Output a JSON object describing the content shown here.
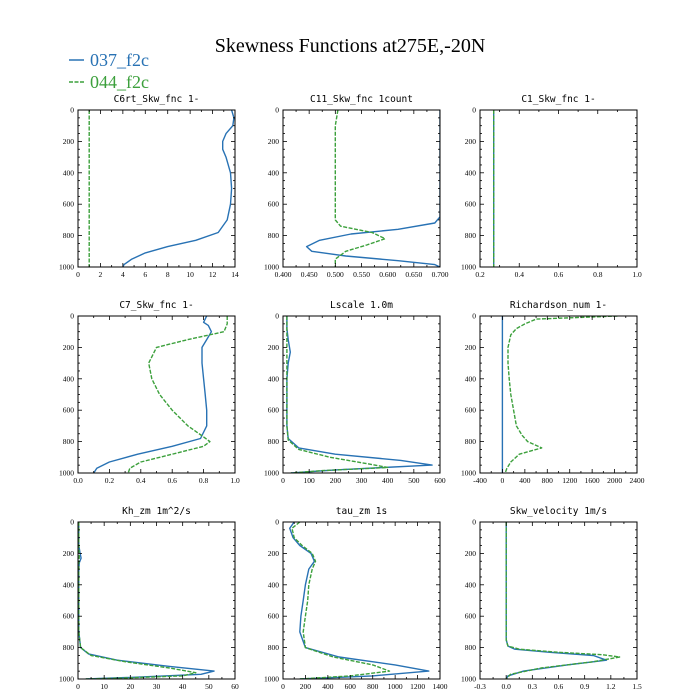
{
  "title": "Skewness Functions at275E,-20N",
  "legend": [
    {
      "name": "037_f2c",
      "color": "#2872b4"
    },
    {
      "name": "044_f2c",
      "color": "#3ca03c"
    }
  ],
  "chart_data": [
    {
      "type": "line",
      "title": "C6rt_Skw_fnc  1-",
      "xlim": [
        0,
        14
      ],
      "ylim": [
        1000,
        0
      ],
      "xticks": [
        "0",
        "2",
        "4",
        "6",
        "8",
        "10",
        "12",
        "14"
      ],
      "yticks": [
        "0",
        "200",
        "400",
        "600",
        "800",
        "1000"
      ],
      "series": [
        {
          "name": "037_f2c",
          "x": [
            13.7,
            13.9,
            13.8,
            13.2,
            12.9,
            12.9,
            13.2,
            13.6,
            13.7,
            13.6,
            13.3,
            12.5,
            10.5,
            8.0,
            6.0,
            4.8,
            4.1,
            4.0
          ],
          "y": [
            0,
            50,
            100,
            150,
            200,
            250,
            300,
            400,
            500,
            600,
            700,
            780,
            830,
            870,
            910,
            950,
            985,
            1000
          ]
        },
        {
          "name": "044_f2c",
          "x": [
            1.0,
            1.0,
            1.0,
            1.0,
            1.0,
            1.0,
            1.0
          ],
          "y": [
            0,
            200,
            400,
            600,
            800,
            950,
            1000
          ]
        }
      ]
    },
    {
      "type": "line",
      "title": "C11_Skw_fnc  1count",
      "xlim": [
        0.4,
        0.7
      ],
      "ylim": [
        1000,
        0
      ],
      "xticks": [
        "0.400",
        "0.450",
        "0.500",
        "0.550",
        "0.600",
        "0.650",
        "0.700"
      ],
      "yticks": [
        "0",
        "200",
        "400",
        "600",
        "800",
        "1000"
      ],
      "series": [
        {
          "name": "037_f2c",
          "x": [
            0.7,
            0.7,
            0.7,
            0.7,
            0.7,
            0.7,
            0.69,
            0.62,
            0.53,
            0.47,
            0.445,
            0.455,
            0.52,
            0.62,
            0.69,
            0.7
          ],
          "y": [
            0,
            200,
            400,
            600,
            650,
            680,
            720,
            760,
            790,
            830,
            870,
            900,
            930,
            960,
            985,
            1000
          ]
        },
        {
          "name": "044_f2c",
          "x": [
            0.505,
            0.5,
            0.5,
            0.5,
            0.5,
            0.5,
            0.51,
            0.57,
            0.595,
            0.56,
            0.52,
            0.5,
            0.5
          ],
          "y": [
            0,
            100,
            200,
            400,
            600,
            700,
            740,
            780,
            820,
            860,
            900,
            950,
            1000
          ]
        }
      ]
    },
    {
      "type": "line",
      "title": "C1_Skw_fnc  1-",
      "xlim": [
        0.2,
        1.0
      ],
      "ylim": [
        1000,
        0
      ],
      "xticks": [
        "0.2",
        "0.4",
        "0.6",
        "0.8",
        "1.0"
      ],
      "yticks": [
        "0",
        "200",
        "400",
        "600",
        "800",
        "1000"
      ],
      "series": [
        {
          "name": "037_f2c",
          "x": [
            0.27,
            0.27,
            0.27,
            0.27,
            0.27,
            0.27
          ],
          "y": [
            0,
            200,
            400,
            600,
            800,
            1000
          ]
        },
        {
          "name": "044_f2c",
          "x": [
            0.27,
            0.27,
            0.27,
            0.27,
            0.27,
            0.27
          ],
          "y": [
            0,
            200,
            400,
            600,
            800,
            1000
          ]
        }
      ]
    },
    {
      "type": "line",
      "title": "C7_Skw_fnc  1-",
      "xlim": [
        0.0,
        1.0
      ],
      "ylim": [
        1000,
        0
      ],
      "xticks": [
        "0.0",
        "0.2",
        "0.4",
        "0.6",
        "0.8",
        "1.0"
      ],
      "yticks": [
        "0",
        "200",
        "400",
        "600",
        "800",
        "1000"
      ],
      "series": [
        {
          "name": "037_f2c",
          "x": [
            0.82,
            0.8,
            0.83,
            0.85,
            0.82,
            0.79,
            0.79,
            0.8,
            0.81,
            0.82,
            0.82,
            0.78,
            0.6,
            0.38,
            0.2,
            0.12,
            0.1
          ],
          "y": [
            0,
            40,
            60,
            100,
            150,
            200,
            300,
            400,
            500,
            600,
            700,
            780,
            830,
            880,
            930,
            970,
            1000
          ]
        },
        {
          "name": "044_f2c",
          "x": [
            0.95,
            0.95,
            0.93,
            0.7,
            0.5,
            0.45,
            0.47,
            0.52,
            0.6,
            0.7,
            0.8,
            0.84,
            0.8,
            0.6,
            0.4,
            0.33,
            0.32
          ],
          "y": [
            0,
            50,
            100,
            150,
            200,
            300,
            400,
            500,
            600,
            700,
            770,
            800,
            830,
            880,
            930,
            970,
            1000
          ]
        }
      ]
    },
    {
      "type": "line",
      "title": "Lscale  1.0m",
      "xlim": [
        0,
        600
      ],
      "ylim": [
        1000,
        0
      ],
      "xticks": [
        "0",
        "100",
        "200",
        "300",
        "400",
        "500",
        "600"
      ],
      "yticks": [
        "0",
        "200",
        "400",
        "600",
        "800",
        "1000"
      ],
      "series": [
        {
          "name": "037_f2c",
          "x": [
            15,
            15,
            20,
            28,
            20,
            15,
            15,
            15,
            15,
            20,
            60,
            200,
            450,
            570,
            200,
            30
          ],
          "y": [
            0,
            80,
            150,
            230,
            300,
            400,
            500,
            600,
            700,
            780,
            840,
            880,
            920,
            950,
            980,
            1000
          ]
        },
        {
          "name": "044_f2c",
          "x": [
            15,
            15,
            15,
            15,
            15,
            15,
            20,
            60,
            180,
            320,
            400,
            150,
            30
          ],
          "y": [
            0,
            100,
            200,
            300,
            500,
            700,
            790,
            850,
            900,
            940,
            965,
            985,
            1000
          ]
        }
      ]
    },
    {
      "type": "line",
      "title": "Richardson_num  1-",
      "xlim": [
        -400,
        2400
      ],
      "ylim": [
        1000,
        0
      ],
      "xticks": [
        "-400",
        "0",
        "400",
        "800",
        "1200",
        "1600",
        "2000",
        "2400"
      ],
      "yticks": [
        "0",
        "200",
        "400",
        "600",
        "800",
        "1000"
      ],
      "series": [
        {
          "name": "037_f2c",
          "x": [
            0,
            0,
            0,
            0,
            0,
            0,
            0
          ],
          "y": [
            0,
            200,
            400,
            600,
            800,
            900,
            1000
          ]
        },
        {
          "name": "044_f2c",
          "x": [
            2050,
            600,
            400,
            250,
            150,
            100,
            100,
            120,
            150,
            200,
            250,
            350,
            450,
            700,
            300,
            150,
            80,
            50
          ],
          "y": [
            0,
            20,
            50,
            80,
            120,
            200,
            300,
            400,
            500,
            600,
            700,
            760,
            800,
            840,
            880,
            930,
            970,
            1000
          ]
        }
      ]
    },
    {
      "type": "line",
      "title": "Kh_zm  1m^2/s",
      "xlim": [
        0,
        60
      ],
      "ylim": [
        1000,
        0
      ],
      "xticks": [
        "0",
        "10",
        "20",
        "30",
        "40",
        "50",
        "60"
      ],
      "yticks": [
        "0",
        "200",
        "400",
        "600",
        "800",
        "1000"
      ],
      "series": [
        {
          "name": "037_f2c",
          "x": [
            0.3,
            0.3,
            0.8,
            1.2,
            0.5,
            0.3,
            0.3,
            0.3,
            1,
            4,
            15,
            35,
            52,
            47,
            20,
            3
          ],
          "y": [
            0,
            150,
            200,
            230,
            260,
            300,
            500,
            700,
            800,
            840,
            880,
            920,
            950,
            970,
            990,
            1000
          ]
        },
        {
          "name": "044_f2c",
          "x": [
            0.3,
            0.3,
            0.5,
            0.3,
            0.3,
            0.3,
            1,
            5,
            18,
            35,
            45,
            40,
            15,
            3
          ],
          "y": [
            0,
            150,
            220,
            260,
            500,
            700,
            800,
            850,
            890,
            930,
            960,
            980,
            995,
            1000
          ]
        }
      ]
    },
    {
      "type": "line",
      "title": "tau_zm  1s",
      "xlim": [
        0,
        1400
      ],
      "ylim": [
        1000,
        0
      ],
      "xticks": [
        "0",
        "200",
        "400",
        "600",
        "800",
        "1000",
        "1200",
        "1400"
      ],
      "yticks": [
        "0",
        "200",
        "400",
        "600",
        "800",
        "1000"
      ],
      "series": [
        {
          "name": "037_f2c",
          "x": [
            100,
            60,
            90,
            150,
            250,
            280,
            230,
            200,
            180,
            160,
            150,
            200,
            500,
            1000,
            1300,
            800,
            150
          ],
          "y": [
            0,
            40,
            100,
            150,
            200,
            250,
            300,
            400,
            500,
            600,
            700,
            800,
            860,
            910,
            950,
            980,
            1000
          ]
        },
        {
          "name": "044_f2c",
          "x": [
            150,
            80,
            100,
            170,
            260,
            290,
            260,
            230,
            220,
            200,
            180,
            200,
            450,
            800,
            950,
            600,
            150
          ],
          "y": [
            0,
            40,
            100,
            150,
            200,
            250,
            300,
            400,
            500,
            600,
            700,
            800,
            860,
            910,
            950,
            980,
            1000
          ]
        }
      ]
    },
    {
      "type": "line",
      "title": "Skw_velocity  1m/s",
      "xlim": [
        -0.3,
        1.5
      ],
      "ylim": [
        1000,
        0
      ],
      "xticks": [
        "-0.3",
        "0.0",
        "0.3",
        "0.6",
        "0.9",
        "1.2",
        "1.5"
      ],
      "yticks": [
        "0",
        "200",
        "400",
        "600",
        "800",
        "1000"
      ],
      "series": [
        {
          "name": "037_f2c",
          "x": [
            0.0,
            0.0,
            0.0,
            0.0,
            0.0,
            0.02,
            0.1,
            0.5,
            1.0,
            1.15,
            0.7,
            0.2,
            0.02,
            0.0
          ],
          "y": [
            0,
            200,
            400,
            600,
            750,
            790,
            810,
            830,
            850,
            880,
            910,
            950,
            980,
            1000
          ]
        },
        {
          "name": "044_f2c",
          "x": [
            0.0,
            0.0,
            0.0,
            0.0,
            0.0,
            0.02,
            0.15,
            0.6,
            1.1,
            1.3,
            1.0,
            0.4,
            0.05,
            0.0
          ],
          "y": [
            0,
            200,
            400,
            600,
            750,
            790,
            810,
            830,
            845,
            860,
            890,
            930,
            970,
            1000
          ]
        }
      ]
    }
  ]
}
